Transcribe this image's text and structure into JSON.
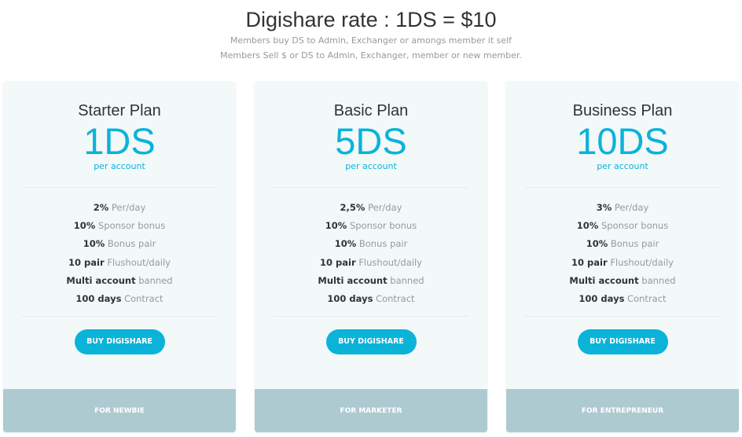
{
  "header": {
    "title": "Digishare rate : 1DS = $10",
    "line1": "Members buy DS to Admin, Exchanger or amongs member it self",
    "line2": "Members Sell $ or DS to Admin, Exchanger, member or new member."
  },
  "colors": {
    "accent": "#0bb3d9",
    "card_bg": "#f3f8f9",
    "footer_bg": "#adcad1"
  },
  "plans": [
    {
      "name": "Starter Plan",
      "price": "1DS",
      "per": "per account",
      "features": [
        {
          "b": "2%",
          "t": "Per/day"
        },
        {
          "b": "10%",
          "t": "Sponsor bonus"
        },
        {
          "b": "10%",
          "t": "Bonus pair"
        },
        {
          "b": "10 pair",
          "t": "Flushout/daily"
        },
        {
          "b": "Multi account",
          "t": "banned"
        },
        {
          "b": "100 days",
          "t": "Contract"
        }
      ],
      "button": "BUY DIGISHARE",
      "footer": "FOR NEWBIE"
    },
    {
      "name": "Basic Plan",
      "price": "5DS",
      "per": "per account",
      "features": [
        {
          "b": "2,5%",
          "t": "Per/day"
        },
        {
          "b": "10%",
          "t": "Sponsor bonus"
        },
        {
          "b": "10%",
          "t": "Bonus pair"
        },
        {
          "b": "10 pair",
          "t": "Flushout/daily"
        },
        {
          "b": "Multi account",
          "t": "banned"
        },
        {
          "b": "100 days",
          "t": "Contract"
        }
      ],
      "button": "BUY DIGISHARE",
      "footer": "FOR MARKETER"
    },
    {
      "name": "Business Plan",
      "price": "10DS",
      "per": "per account",
      "features": [
        {
          "b": "3%",
          "t": "Per/day"
        },
        {
          "b": "10%",
          "t": "Sponsor bonus"
        },
        {
          "b": "10%",
          "t": "Bonus pair"
        },
        {
          "b": "10 pair",
          "t": "Flushout/daily"
        },
        {
          "b": "Multi account",
          "t": "banned"
        },
        {
          "b": "100 days",
          "t": "Contract"
        }
      ],
      "button": "BUY DIGISHARE",
      "footer": "FOR ENTREPRENEUR"
    }
  ]
}
